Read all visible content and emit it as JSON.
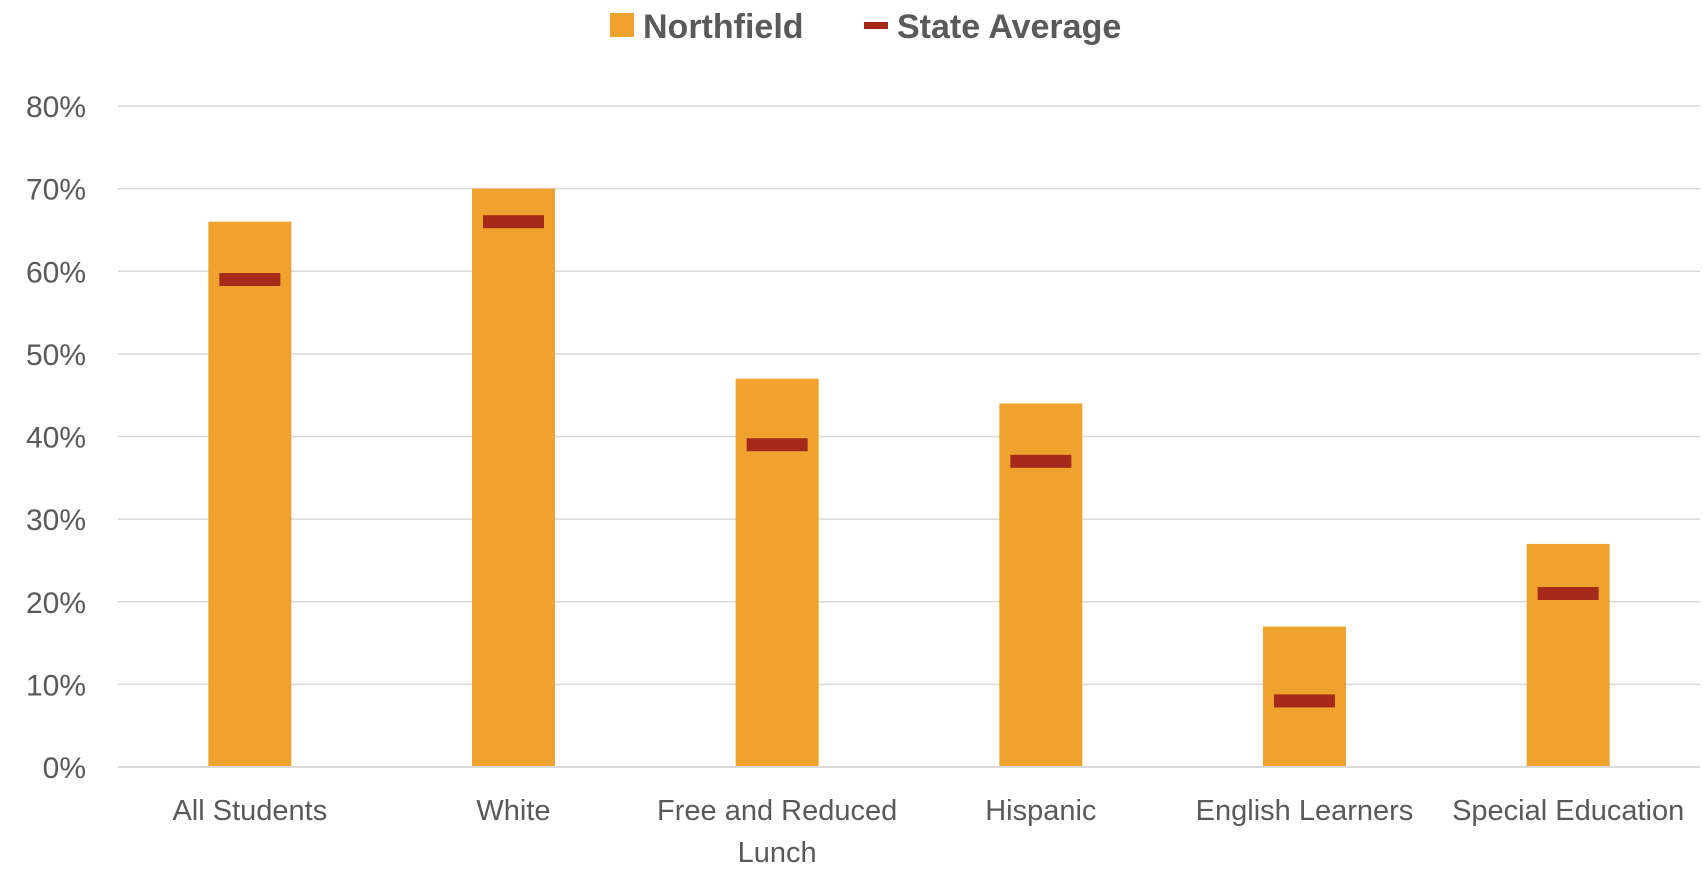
{
  "chart_data": {
    "type": "bar",
    "categories": [
      [
        "All Students"
      ],
      [
        "White"
      ],
      [
        "Free and Reduced",
        "Lunch"
      ],
      [
        "Hispanic"
      ],
      [
        "English Learners"
      ],
      [
        "Special Education"
      ]
    ],
    "series": [
      {
        "name": "Northfield",
        "kind": "bar",
        "color": "#F0A22E",
        "values": [
          66,
          70,
          47,
          44,
          17,
          27
        ]
      },
      {
        "name": "State Average",
        "kind": "marker",
        "color": "#A52A1A",
        "values": [
          59,
          66,
          39,
          37,
          8,
          21
        ]
      }
    ],
    "yticks": [
      "0%",
      "10%",
      "20%",
      "30%",
      "40%",
      "50%",
      "60%",
      "70%",
      "80%"
    ],
    "ylim": [
      0,
      80
    ],
    "grid": true,
    "legend_position": "top-center"
  }
}
